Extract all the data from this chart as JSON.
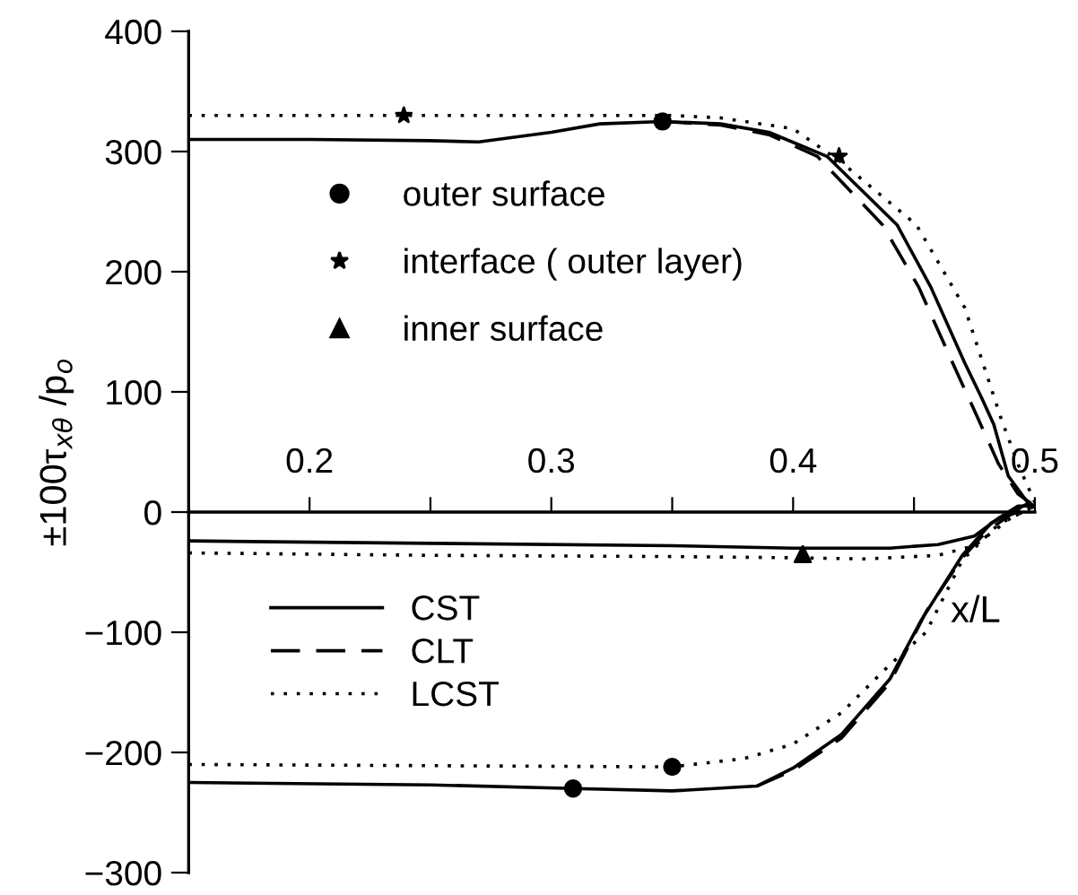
{
  "chart_data": {
    "type": "line",
    "xlabel": "x/L",
    "ylabel": "±100τ$_{xθ}$ /p$_{o}$",
    "xlim": [
      0.15,
      0.5
    ],
    "ylim": [
      -300,
      400
    ],
    "xticks": [
      0.2,
      {
        "value": 0.25,
        "label": null
      },
      0.3,
      {
        "value": 0.35,
        "label": null
      },
      0.4,
      {
        "value": 0.45,
        "label": null
      },
      0.5
    ],
    "yticks": [
      -300,
      -200,
      -100,
      0,
      100,
      200,
      300,
      400
    ],
    "legend": "left",
    "series": [
      {
        "name": "CST",
        "line_style": "solid",
        "color": "#000000",
        "x": [
          0.15,
          0.2,
          0.25,
          0.27,
          0.3,
          0.32,
          0.346,
          0.37,
          0.39,
          0.414,
          0.443,
          0.457,
          0.471,
          0.478,
          0.483,
          0.489,
          0.497,
          0.5
        ],
        "values": [
          310,
          310,
          309,
          308,
          316,
          323,
          325,
          323,
          316,
          296,
          239,
          187,
          124,
          95,
          73,
          30,
          8,
          5
        ]
      },
      {
        "type": "line",
        "line_style": "solid",
        "color": "#000000",
        "x": [
          0.15,
          0.25,
          0.35,
          0.4,
          0.44,
          0.46,
          0.475,
          0.485,
          0.493,
          0.5
        ],
        "values": [
          -24,
          -26,
          -28,
          -30,
          -30,
          -27,
          -20,
          -5,
          5,
          5
        ]
      },
      {
        "type": "line",
        "line_style": "solid",
        "color": "#000000",
        "x": [
          0.15,
          0.25,
          0.309,
          0.35,
          0.385,
          0.4,
          0.42,
          0.44,
          0.453,
          0.47,
          0.482,
          0.497,
          0.5
        ],
        "values": [
          -225,
          -227,
          -230,
          -232,
          -228,
          -213,
          -185,
          -139,
          -90,
          -36,
          -9,
          7,
          5
        ]
      },
      {
        "name": "CLT",
        "line_style": "dashed",
        "color": "#000000",
        "x": [
          0.346,
          0.37,
          0.39,
          0.41,
          0.437,
          0.452,
          0.466,
          0.476,
          0.485,
          0.493,
          0.5
        ],
        "values": [
          325,
          322,
          314,
          296,
          239,
          187,
          124,
          80,
          40,
          15,
          5
        ]
      },
      {
        "type": "line",
        "line_style": "dashed",
        "color": "#000000",
        "x": [
          0.385,
          0.4,
          0.42,
          0.44,
          0.455,
          0.47,
          0.48,
          0.49,
          0.5
        ],
        "values": [
          -228,
          -215,
          -188,
          -142,
          -83,
          -38,
          -16,
          -2,
          5
        ]
      },
      {
        "name": "LCST",
        "line_style": "dotted",
        "color": "#000000",
        "x": [
          0.15,
          0.25,
          0.35,
          0.37,
          0.4,
          0.42,
          0.451,
          0.471,
          0.486,
          0.493,
          0.5
        ],
        "values": [
          330,
          330,
          330,
          328,
          319,
          291,
          239,
          170,
          78,
          40,
          8
        ]
      },
      {
        "type": "line",
        "line_style": "dotted",
        "color": "#000000",
        "x": [
          0.15,
          0.25,
          0.35,
          0.4,
          0.43,
          0.46,
          0.475,
          0.49,
          0.5
        ],
        "values": [
          -34,
          -36,
          -37,
          -38,
          -39,
          -36,
          -28,
          -5,
          5
        ]
      },
      {
        "type": "line",
        "line_style": "dotted",
        "color": "#000000",
        "x": [
          0.15,
          0.25,
          0.35,
          0.38,
          0.4,
          0.42,
          0.44,
          0.455,
          0.47,
          0.485,
          0.5
        ],
        "values": [
          -210,
          -211,
          -212,
          -205,
          -193,
          -167,
          -127,
          -100,
          -40,
          -10,
          5
        ]
      },
      {
        "name": "outer surface",
        "type": "scatter",
        "marker": "circle",
        "color": "#000000",
        "x": [
          0.346,
          0.309,
          0.35
        ],
        "values": [
          325,
          -230,
          -212
        ]
      },
      {
        "name": "interface ( outer layer)",
        "type": "scatter",
        "marker": "star",
        "color": "#000000",
        "x": [
          0.239,
          0.419
        ],
        "values": [
          330,
          296
        ]
      },
      {
        "name": "inner surface",
        "type": "scatter",
        "marker": "triangle",
        "color": "#000000",
        "x": [
          0.404
        ],
        "values": [
          -35
        ]
      }
    ]
  }
}
